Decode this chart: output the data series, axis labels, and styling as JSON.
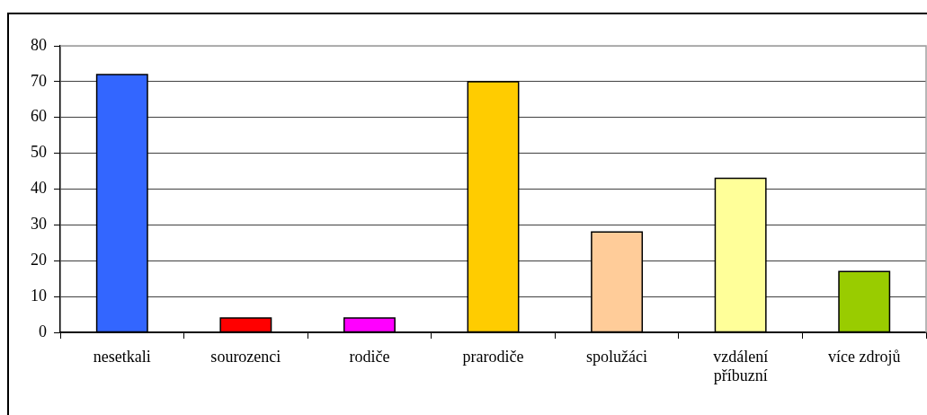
{
  "chart_data": {
    "type": "bar",
    "categories": [
      "nesetkali",
      "sourozenci",
      "rodiče",
      "prarodiče",
      "spolužáci",
      "vzdálení příbuzní",
      "více zdrojů"
    ],
    "values": [
      72,
      4,
      4,
      70,
      28,
      43,
      17
    ],
    "colors": [
      "#3366ff",
      "#ff0000",
      "#ff00ff",
      "#ffcc00",
      "#ffcc99",
      "#ffff99",
      "#99cc00"
    ],
    "ylim": [
      0,
      80
    ],
    "yticks": [
      0,
      10,
      20,
      30,
      40,
      50,
      60,
      70,
      80
    ],
    "grid": "y",
    "legend": false
  }
}
